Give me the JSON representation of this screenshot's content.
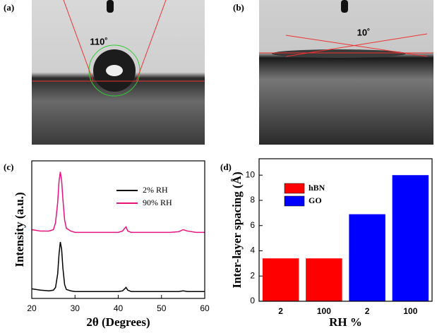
{
  "panels": [
    {
      "label": "(a)",
      "angle": "110˚"
    },
    {
      "label": "(b)",
      "angle": "10˚"
    }
  ],
  "chart_data": [
    {
      "type": "line",
      "label": "(c)",
      "xlabel": "2θ (Degrees)",
      "ylabel": "Intensity (a.u.)",
      "xlim": [
        20,
        60
      ],
      "xticks": [
        20,
        30,
        40,
        50,
        60
      ],
      "ylim": [
        0,
        100
      ],
      "legend": "upper right",
      "x": [
        20,
        22,
        24,
        25,
        25.5,
        26,
        26.3,
        26.6,
        26.9,
        27.2,
        27.6,
        28,
        29,
        30,
        32,
        35,
        38,
        40,
        41,
        41.5,
        41.8,
        42.2,
        43,
        45,
        48,
        50,
        52,
        54,
        55,
        56,
        58,
        60
      ],
      "series": [
        {
          "name": "2% RH",
          "color": "#000000",
          "values": [
            7,
            6,
            5.5,
            6,
            8,
            18,
            32,
            41,
            36,
            22,
            10,
            6.5,
            5.5,
            5,
            5,
            5,
            5,
            5,
            5.5,
            7,
            8,
            6,
            5,
            5,
            5,
            5,
            5,
            5,
            5.5,
            5,
            5,
            5
          ]
        },
        {
          "name": "90% RH",
          "color": "#e6127f",
          "values": [
            50,
            49,
            49,
            50,
            55,
            70,
            85,
            92,
            86,
            72,
            57,
            51,
            49,
            48,
            48,
            48,
            48,
            48,
            49,
            51,
            52,
            49,
            48,
            48,
            48,
            48,
            48,
            48.5,
            50,
            49,
            48,
            48
          ]
        }
      ]
    },
    {
      "type": "bar",
      "label": "(d)",
      "xlabel": "RH %",
      "ylabel": "Inter-layer spacing (Å)",
      "categories": [
        "2",
        "100",
        "2",
        "100"
      ],
      "ylim": [
        0,
        11.3
      ],
      "yticks": [
        0,
        2,
        4,
        6,
        8,
        10
      ],
      "legend": "upper left",
      "series": [
        {
          "name": "hBN",
          "color": "#ff0000",
          "values": [
            3.4,
            3.4,
            null,
            null
          ]
        },
        {
          "name": "GO",
          "color": "#0000ff",
          "values": [
            null,
            null,
            6.9,
            10
          ]
        }
      ]
    }
  ]
}
